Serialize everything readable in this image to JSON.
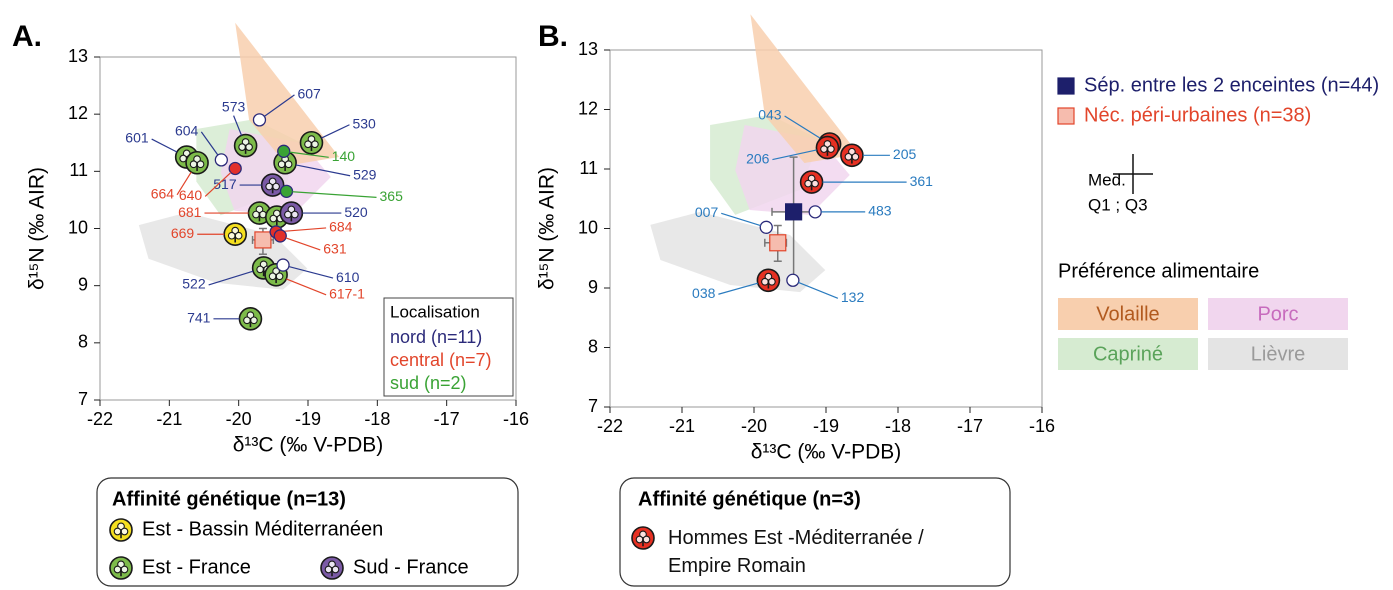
{
  "chart_data": [
    {
      "type": "scatter",
      "title": "A.",
      "xlabel": "δ¹³C (‰ V-PDB)",
      "ylabel": "δ¹⁵N (‰ AIR)",
      "xlim": [
        -22,
        -16
      ],
      "ylim": [
        7,
        13
      ],
      "xticks": [
        -22,
        -21,
        -20,
        -19,
        -18,
        -17,
        -16
      ],
      "yticks": [
        7,
        8,
        9,
        10,
        11,
        12,
        13
      ],
      "regions": [
        {
          "color": "#e4e4e4",
          "x": [
            -21.44,
            -20.75,
            -19.5,
            -19.01,
            -19.36,
            -20.33,
            -21.3
          ],
          "y": [
            10.06,
            10.28,
            9.89,
            9.3,
            8.93,
            9.05,
            9.47
          ]
        },
        {
          "color": "#d6ebd1",
          "x": [
            -20.61,
            -19.78,
            -19.08,
            -19.36,
            -20.26,
            -20.61
          ],
          "y": [
            11.74,
            11.91,
            11.49,
            10.65,
            10.23,
            10.82
          ]
        },
        {
          "color": "#f1d6ee",
          "x": [
            -20.13,
            -19.08,
            -18.67,
            -19.22,
            -20.06,
            -20.26
          ],
          "y": [
            11.74,
            11.49,
            10.9,
            10.23,
            10.31,
            10.98
          ]
        },
        {
          "color": "#f8cfae",
          "x": [
            -20.05,
            -18.55,
            -19.3,
            -19.85
          ],
          "y": [
            13.6,
            11.25,
            11.1,
            11.9
          ]
        }
      ],
      "summary": [
        {
          "color": "#f6bcae",
          "x": [
            -19.65
          ],
          "y": [
            9.8
          ],
          "x_q1_q3": [
            -19.8,
            -19.5
          ],
          "y_q1_q3": [
            9.55,
            10.0
          ]
        }
      ],
      "series": [
        {
          "name": "Est - Bassin Méditerranéen",
          "marker": "clover",
          "color": "#f5df1f",
          "x": [
            -20.05
          ],
          "y": [
            9.9
          ],
          "labels": [
            "669"
          ],
          "label_colors": [
            "#e2452b"
          ]
        },
        {
          "name": "Est - France",
          "marker": "clover",
          "color": "#7dbb4a",
          "x": [
            -18.95,
            -19.9,
            -20.75,
            -20.6,
            -19.33,
            -19.7,
            -19.45,
            -19.64,
            -19.46,
            -19.83
          ],
          "y": [
            11.5,
            11.45,
            11.25,
            11.15,
            11.15,
            10.27,
            10.2,
            9.31,
            9.19,
            8.42
          ],
          "labels": [
            "530",
            "573",
            "601",
            "664",
            "529",
            "681",
            null,
            "522",
            "617-1",
            "741"
          ],
          "label_colors": [
            "#2b3a8f",
            "#2b3a8f",
            "#2b3a8f",
            "#e2452b",
            "#2b3a8f",
            "#e2452b",
            null,
            "#2b3a8f",
            "#e2452b",
            "#2b3a8f"
          ]
        },
        {
          "name": "Sud - France",
          "marker": "clover",
          "color": "#7b5aa6",
          "x": [
            -19.51,
            -19.24
          ],
          "y": [
            10.76,
            10.27
          ],
          "labels": [
            "517",
            "520"
          ],
          "label_colors": [
            "#2b3a8f",
            "#2b3a8f"
          ]
        },
        {
          "marker": "circle",
          "color": "#ffffff",
          "x": [
            -19.7,
            -20.25,
            -19.36
          ],
          "y": [
            11.9,
            11.2,
            9.36
          ],
          "labels": [
            "607",
            "604",
            "610"
          ],
          "label_colors": [
            "#2b3a8f",
            "#2b3a8f",
            "#2b3a8f"
          ]
        },
        {
          "marker": "circle",
          "color": "#e2302b",
          "x": [
            -20.05,
            -19.46,
            -19.4
          ],
          "y": [
            11.05,
            9.94,
            9.87
          ],
          "labels": [
            "640",
            "684",
            "631"
          ],
          "label_colors": [
            "#e2452b",
            "#e2452b",
            "#e2452b"
          ]
        },
        {
          "marker": "circle",
          "color": "#3aa335",
          "x": [
            -19.35,
            -19.31
          ],
          "y": [
            11.35,
            10.65
          ],
          "labels": [
            "140",
            "365"
          ],
          "label_colors": [
            "#3aa335",
            "#3aa335"
          ]
        }
      ],
      "localisation": {
        "title": "Localisation",
        "entries": [
          {
            "label": "nord (n=11)",
            "color": "#2b2a7a"
          },
          {
            "label": "central (n=7)",
            "color": "#e2452b"
          },
          {
            "label": "sud (n=2)",
            "color": "#3aa335"
          }
        ]
      },
      "legend_title": "Affinité génétique (n=13)"
    },
    {
      "type": "scatter",
      "title": "B.",
      "xlabel": "δ¹³C (‰ V-PDB)",
      "ylabel": "δ¹⁵N (‰ AIR)",
      "xlim": [
        -22,
        -16
      ],
      "ylim": [
        7,
        13
      ],
      "xticks": [
        -22,
        -21,
        -20,
        -19,
        -18,
        -17,
        -16
      ],
      "yticks": [
        7,
        8,
        9,
        10,
        11,
        12,
        13
      ],
      "regions": [
        {
          "name": "Lièvre",
          "color": "#e4e4e4",
          "text_color": "#9a9a9a",
          "x": [
            -21.44,
            -20.75,
            -19.5,
            -19.01,
            -19.36,
            -20.33,
            -21.3
          ],
          "y": [
            10.06,
            10.28,
            9.89,
            9.3,
            8.93,
            9.05,
            9.47
          ]
        },
        {
          "name": "Capriné",
          "color": "#d6ebd1",
          "text_color": "#5aa35a",
          "x": [
            -20.61,
            -19.78,
            -19.08,
            -19.36,
            -20.26,
            -20.61
          ],
          "y": [
            11.74,
            11.91,
            11.49,
            10.65,
            10.23,
            10.82
          ]
        },
        {
          "name": "Porc",
          "color": "#f1d6ee",
          "text_color": "#c76bbd",
          "x": [
            -20.13,
            -19.08,
            -18.67,
            -19.22,
            -20.06,
            -20.26
          ],
          "y": [
            11.74,
            11.49,
            10.9,
            10.23,
            10.31,
            10.98
          ]
        },
        {
          "name": "Volaille",
          "color": "#f8cfae",
          "text_color": "#b25a1e",
          "x": [
            -20.05,
            -18.55,
            -19.3,
            -19.85
          ],
          "y": [
            13.6,
            11.25,
            11.1,
            11.9
          ]
        }
      ],
      "summary": [
        {
          "name": "Sép. entre les 2 enceintes (n=44)",
          "color": "#1d1f6b",
          "text_color": "#1d1f6b",
          "x": [
            -19.45
          ],
          "y": [
            10.28
          ],
          "x_q1_q3": [
            -19.75,
            -19.1
          ],
          "y_q1_q3": [
            9.2,
            11.2
          ]
        },
        {
          "name": "Néc. péri-urbaines (n=38)",
          "color": "#f6bcae",
          "text_color": "#e2452b",
          "x": [
            -19.67
          ],
          "y": [
            9.76
          ],
          "x_q1_q3": [
            -19.85,
            -19.55
          ],
          "y_q1_q3": [
            9.45,
            10.05
          ]
        }
      ],
      "series": [
        {
          "name": "Hommes Est -Méditerranée / Empire Romain",
          "marker": "clover",
          "color": "#e63022",
          "x": [
            -18.95,
            -18.98,
            -18.64,
            -19.2,
            -19.8
          ],
          "y": [
            11.42,
            11.36,
            11.23,
            10.78,
            9.13
          ],
          "labels": [
            "043",
            "206",
            "205",
            "361",
            "038"
          ],
          "label_colors": [
            "#2a7bbf",
            "#2a7bbf",
            "#2a7bbf",
            "#2a7bbf",
            "#2a7bbf"
          ]
        },
        {
          "marker": "circle",
          "color": "#ffffff",
          "x": [
            -19.15,
            -19.83,
            -19.46
          ],
          "y": [
            10.28,
            10.02,
            9.13
          ],
          "labels": [
            "483",
            "007",
            "132"
          ],
          "label_colors": [
            "#2a7bbf",
            "#2a7bbf",
            "#2a7bbf"
          ]
        }
      ],
      "median_legend": {
        "top": "Med.",
        "bottom": "Q1 ; Q3"
      },
      "regions_title": "Préférence alimentaire",
      "legend_title": "Affinité génétique (n=3)"
    }
  ]
}
